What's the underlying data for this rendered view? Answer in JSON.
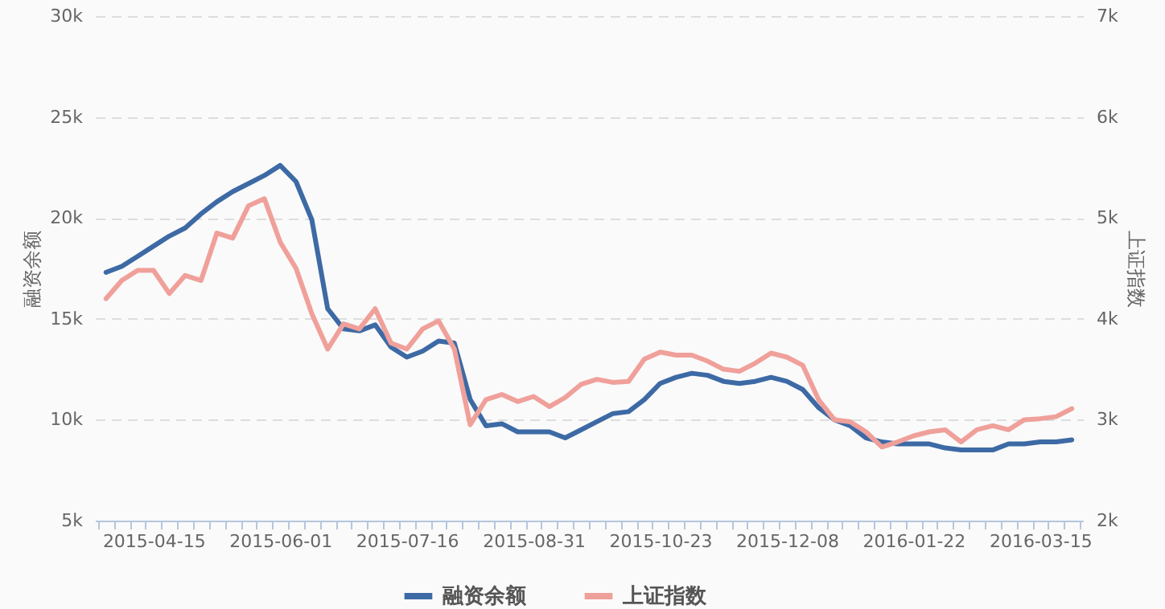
{
  "chart_data": {
    "type": "line",
    "ylabel": "融资余额",
    "y2label": "上证指数",
    "categories": [
      null,
      null,
      null,
      "2015-04-15",
      null,
      null,
      null,
      null,
      null,
      null,
      null,
      "2015-06-01",
      null,
      null,
      null,
      null,
      null,
      null,
      null,
      "2015-07-16",
      null,
      null,
      null,
      null,
      null,
      null,
      null,
      "2015-08-31",
      null,
      null,
      null,
      null,
      null,
      null,
      null,
      "2015-10-23",
      null,
      null,
      null,
      null,
      null,
      null,
      null,
      "2015-12-08",
      null,
      null,
      null,
      null,
      null,
      null,
      null,
      "2016-01-22",
      null,
      null,
      null,
      null,
      null,
      null,
      null,
      "2016-03-15",
      null,
      null
    ],
    "series": [
      {
        "name": "融资余额",
        "color": "#3d6aa5",
        "values": [
          17300,
          17600,
          18100,
          18600,
          19100,
          19500,
          20200,
          20800,
          21300,
          21700,
          22100,
          22600,
          21800,
          19900,
          15500,
          14500,
          14400,
          14700,
          13600,
          13100,
          13400,
          13900,
          13800,
          11000,
          9700,
          9800,
          9400,
          9400,
          9400,
          9100,
          9500,
          9900,
          10300,
          10400,
          11000,
          11800,
          12100,
          12300,
          12200,
          11900,
          11800,
          11900,
          12100,
          11900,
          11500,
          10600,
          10000,
          9700,
          9100,
          8900,
          8800,
          8800,
          8800,
          8600,
          8500,
          8500,
          8500,
          8800,
          8800,
          8900,
          8900,
          9000
        ]
      },
      {
        "name": "上证指数",
        "color": "#f0a09a",
        "axis": "y2",
        "values": [
          4200,
          4380,
          4480,
          4480,
          4250,
          4430,
          4380,
          4850,
          4800,
          5120,
          5190,
          4760,
          4500,
          4050,
          3700,
          3950,
          3900,
          4100,
          3760,
          3700,
          3900,
          3980,
          3700,
          2950,
          3200,
          3250,
          3180,
          3230,
          3130,
          3220,
          3350,
          3400,
          3370,
          3380,
          3600,
          3670,
          3640,
          3640,
          3580,
          3500,
          3480,
          3560,
          3660,
          3620,
          3540,
          3200,
          3000,
          2980,
          2880,
          2730,
          2780,
          2840,
          2880,
          2900,
          2780,
          2900,
          2940,
          2900,
          3000,
          3010,
          3030,
          3110
        ]
      }
    ],
    "ylim": [
      5000,
      30000
    ],
    "yticks": [
      {
        "value": 5000,
        "label": "5k"
      },
      {
        "value": 10000,
        "label": "10k"
      },
      {
        "value": 15000,
        "label": "15k"
      },
      {
        "value": 20000,
        "label": "20k"
      },
      {
        "value": 25000,
        "label": "25k"
      },
      {
        "value": 30000,
        "label": "30k"
      }
    ],
    "y2lim": [
      2000,
      7000
    ],
    "y2ticks": [
      {
        "value": 2000,
        "label": "2k"
      },
      {
        "value": 3000,
        "label": "3k"
      },
      {
        "value": 4000,
        "label": "4k"
      },
      {
        "value": 5000,
        "label": "5k"
      },
      {
        "value": 6000,
        "label": "6k"
      },
      {
        "value": 7000,
        "label": "7k"
      }
    ],
    "grid": "y",
    "legend": "bottom",
    "marker": "none",
    "line_style": "solid"
  }
}
